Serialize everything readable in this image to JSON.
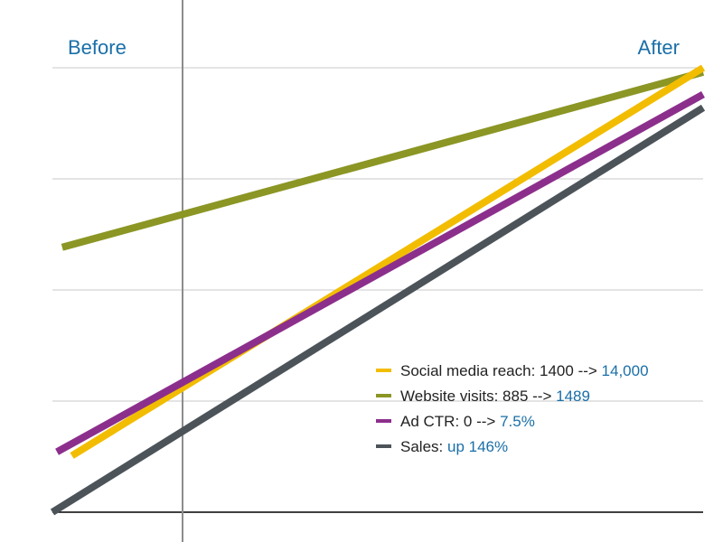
{
  "chart_data": {
    "type": "line",
    "x": [
      "Before",
      "After"
    ],
    "x_range": [
      0,
      1
    ],
    "ylim": [
      0,
      1
    ],
    "grid": true,
    "legend_position": "bottom-right",
    "series": [
      {
        "key": "social",
        "values": [
          0.1,
          1.0
        ],
        "color": "#f2bd00",
        "legend": {
          "label": "Social media reach: 1400 -->",
          "highlight": "14,000"
        }
      },
      {
        "key": "website",
        "values": [
          0.59,
          0.99
        ],
        "color": "#8b9624",
        "legend": {
          "label": "Website visits: 885 -->",
          "highlight": "1489"
        }
      },
      {
        "key": "adctr",
        "values": [
          0.13,
          0.94
        ],
        "color": "#8c2f8c",
        "legend": {
          "label": "Ad CTR: 0 -->",
          "highlight": "7.5%"
        }
      },
      {
        "key": "sales",
        "values": [
          0.0,
          0.91
        ],
        "color": "#4c545a",
        "legend": {
          "label": "Sales:",
          "highlight": "up 146%"
        }
      }
    ],
    "highlight_color": "#1a6fa8",
    "marker_x": 0.2,
    "labels": {
      "before": "Before",
      "after": "After"
    }
  }
}
